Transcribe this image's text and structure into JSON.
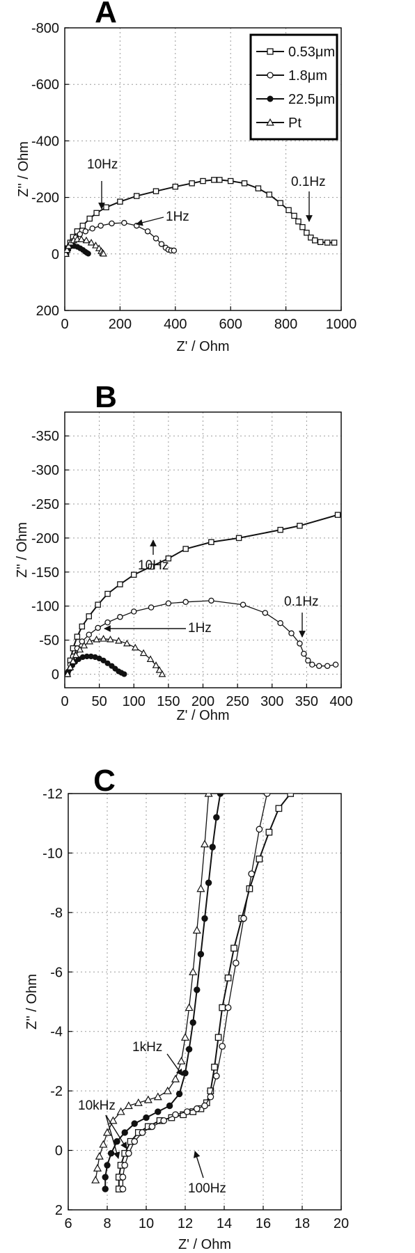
{
  "legend": [
    {
      "label": "0.53μm",
      "marker": "square"
    },
    {
      "label": "1.8μm",
      "marker": "open-circle"
    },
    {
      "label": "22.5μm",
      "marker": "filled-circle"
    },
    {
      "label": "Pt",
      "marker": "triangle"
    }
  ],
  "chart_data": [
    {
      "panel": "A",
      "type": "scatter",
      "xlabel": "Z' / Ohm",
      "ylabel": "Z'' / Ohm",
      "xlim": [
        0,
        1000
      ],
      "ylim": [
        200,
        -800
      ],
      "xticks": [
        "0",
        "200",
        "400",
        "600",
        "800",
        "1000"
      ],
      "yticks": [
        "-800",
        "-600",
        "-400",
        "-200",
        "0",
        "200"
      ],
      "grid": true,
      "legend_placement": "top-right",
      "series": [
        {
          "name": "0.53μm",
          "marker": "square",
          "x": [
            5,
            12,
            20,
            30,
            45,
            65,
            90,
            115,
            150,
            200,
            260,
            330,
            400,
            460,
            500,
            540,
            560,
            600,
            650,
            700,
            740,
            780,
            810,
            830,
            845,
            860,
            875,
            890,
            905,
            925,
            950,
            975
          ],
          "y": [
            0,
            -20,
            -40,
            -60,
            -80,
            -100,
            -125,
            -145,
            -165,
            -185,
            -205,
            -222,
            -238,
            -250,
            -258,
            -262,
            -262,
            -258,
            -250,
            -232,
            -210,
            -180,
            -155,
            -135,
            -115,
            -95,
            -75,
            -58,
            -48,
            -42,
            -40,
            -40
          ]
        },
        {
          "name": "1.8μm",
          "marker": "open-circle",
          "x": [
            5,
            10,
            18,
            28,
            40,
            55,
            75,
            100,
            130,
            170,
            215,
            260,
            300,
            330,
            350,
            365,
            375,
            385,
            395
          ],
          "y": [
            0,
            -15,
            -30,
            -45,
            -58,
            -70,
            -80,
            -90,
            -100,
            -108,
            -110,
            -100,
            -80,
            -55,
            -35,
            -22,
            -15,
            -12,
            -12
          ]
        },
        {
          "name": "22.5μm",
          "marker": "filled-circle",
          "x": [
            3,
            6,
            10,
            16,
            24,
            34,
            46,
            56,
            66,
            74,
            80,
            85
          ],
          "y": [
            0,
            -10,
            -18,
            -24,
            -28,
            -28,
            -25,
            -20,
            -14,
            -8,
            -4,
            -1
          ]
        },
        {
          "name": "Pt",
          "marker": "triangle",
          "x": [
            4,
            8,
            14,
            22,
            32,
            45,
            60,
            78,
            96,
            112,
            124,
            132,
            137,
            140
          ],
          "y": [
            0,
            -14,
            -28,
            -40,
            -48,
            -52,
            -52,
            -48,
            -40,
            -30,
            -20,
            -10,
            -4,
            -1
          ]
        }
      ],
      "annotations": [
        {
          "text": "10Hz",
          "x": 128,
          "y": -155
        },
        {
          "text": "1Hz",
          "x": 215,
          "y": -112
        },
        {
          "text": "0.1Hz",
          "x": 858,
          "y": -115
        }
      ]
    },
    {
      "panel": "B",
      "type": "scatter",
      "xlabel": "Z' / Ohm",
      "ylabel": "Z'' / Ohm",
      "xlim": [
        0,
        400
      ],
      "ylim": [
        20,
        -385
      ],
      "xticks": [
        "0",
        "50",
        "100",
        "150",
        "200",
        "250",
        "300",
        "350",
        "400"
      ],
      "yticks": [
        "-350",
        "-300",
        "-250",
        "-200",
        "-150",
        "-100",
        "-50",
        "0"
      ],
      "grid": true,
      "series": [
        {
          "name": "0.53μm",
          "marker": "square",
          "x": [
            4,
            8,
            12,
            18,
            25,
            35,
            48,
            62,
            80,
            100,
            125,
            150,
            175,
            212,
            252,
            312,
            340,
            395
          ],
          "y": [
            0,
            -20,
            -38,
            -55,
            -70,
            -85,
            -102,
            -118,
            -132,
            -146,
            -158,
            -170,
            -184,
            -194,
            -200,
            -212,
            -218,
            -234
          ]
        },
        {
          "name": "1.8μm",
          "marker": "open-circle",
          "x": [
            4,
            8,
            12,
            18,
            25,
            35,
            48,
            62,
            80,
            100,
            125,
            150,
            175,
            212,
            258,
            290,
            312,
            328,
            340,
            346,
            352,
            358,
            368,
            380,
            392
          ],
          "y": [
            0,
            -14,
            -26,
            -38,
            -48,
            -58,
            -68,
            -76,
            -84,
            -92,
            -98,
            -104,
            -106,
            -108,
            -102,
            -90,
            -75,
            -60,
            -45,
            -30,
            -20,
            -14,
            -12,
            -12,
            -14
          ]
        },
        {
          "name": "22.5μm",
          "marker": "filled-circle",
          "x": [
            3,
            5,
            8,
            11,
            15,
            20,
            26,
            32,
            38,
            44,
            50,
            56,
            62,
            68,
            73,
            78,
            82,
            86
          ],
          "y": [
            0,
            -4,
            -8,
            -13,
            -18,
            -22,
            -25,
            -26,
            -26,
            -25,
            -23,
            -20,
            -16,
            -12,
            -8,
            -4,
            -2,
            0
          ]
        },
        {
          "name": "Pt",
          "marker": "triangle",
          "x": [
            4,
            8,
            12,
            16,
            22,
            28,
            36,
            46,
            56,
            66,
            78,
            90,
            102,
            114,
            124,
            132,
            137,
            141
          ],
          "y": [
            0,
            -10,
            -19,
            -28,
            -36,
            -42,
            -48,
            -51,
            -52,
            -51,
            -49,
            -45,
            -39,
            -31,
            -22,
            -13,
            -6,
            0
          ]
        }
      ],
      "annotations": [
        {
          "text": "10Hz",
          "x": 125,
          "y": -155
        },
        {
          "text": "1Hz",
          "x": 68,
          "y": -52
        },
        {
          "text": "0.1Hz",
          "x": 347,
          "y": -25
        }
      ]
    },
    {
      "panel": "C",
      "type": "scatter",
      "xlabel": "Z' / Ohm",
      "ylabel": "Z'' / Ohm",
      "xlim": [
        6,
        20
      ],
      "ylim": [
        2,
        -12
      ],
      "xticks": [
        "6",
        "8",
        "10",
        "12",
        "14",
        "16",
        "18",
        "20"
      ],
      "yticks": [
        "-12",
        "-10",
        "-8",
        "-6",
        "-4",
        "-2",
        "0",
        "2"
      ],
      "grid": true,
      "series": [
        {
          "name": "0.53μm",
          "marker": "square",
          "x": [
            8.6,
            8.6,
            8.7,
            8.9,
            9.2,
            9.6,
            10.1,
            10.7,
            11.3,
            11.9,
            12.4,
            12.8,
            13.1,
            13.3,
            13.5,
            13.7,
            13.9,
            14.2,
            14.5,
            14.9,
            15.3,
            15.8,
            16.3,
            16.8,
            17.4
          ],
          "y": [
            1.3,
            0.9,
            0.5,
            0.1,
            -0.3,
            -0.6,
            -0.8,
            -1.0,
            -1.1,
            -1.2,
            -1.3,
            -1.4,
            -1.6,
            -2.0,
            -2.8,
            -3.8,
            -4.8,
            -5.8,
            -6.8,
            -7.8,
            -8.8,
            -9.8,
            -10.7,
            -11.5,
            -12.0
          ]
        },
        {
          "name": "1.8μm",
          "marker": "open-circle",
          "x": [
            8.8,
            8.8,
            8.9,
            9.1,
            9.4,
            9.8,
            10.3,
            10.9,
            11.5,
            12.1,
            12.6,
            13.0,
            13.3,
            13.6,
            13.9,
            14.2,
            14.6,
            15.0,
            15.4,
            15.8,
            16.2
          ],
          "y": [
            1.3,
            0.9,
            0.5,
            0.1,
            -0.3,
            -0.6,
            -0.8,
            -1.0,
            -1.2,
            -1.3,
            -1.4,
            -1.5,
            -1.8,
            -2.5,
            -3.5,
            -4.8,
            -6.3,
            -7.8,
            -9.3,
            -10.8,
            -12.0
          ]
        },
        {
          "name": "22.5μm",
          "marker": "filled-circle",
          "x": [
            7.9,
            7.9,
            8.0,
            8.2,
            8.5,
            8.9,
            9.4,
            10.0,
            10.6,
            11.2,
            11.7,
            12.0,
            12.2,
            12.4,
            12.6,
            12.8,
            13.0,
            13.2,
            13.4,
            13.6,
            13.8
          ],
          "y": [
            1.3,
            0.9,
            0.5,
            0.1,
            -0.3,
            -0.6,
            -0.9,
            -1.1,
            -1.3,
            -1.5,
            -1.9,
            -2.6,
            -3.4,
            -4.3,
            -5.4,
            -6.6,
            -7.8,
            -9.0,
            -10.2,
            -11.2,
            -12.0
          ]
        },
        {
          "name": "Pt",
          "marker": "triangle",
          "x": [
            7.4,
            7.5,
            7.6,
            7.8,
            8.0,
            8.3,
            8.7,
            9.1,
            9.6,
            10.1,
            10.6,
            11.1,
            11.5,
            11.8,
            12.0,
            12.2,
            12.4,
            12.6,
            12.8,
            13.0,
            13.2
          ],
          "y": [
            1.0,
            0.6,
            0.2,
            -0.2,
            -0.6,
            -1.0,
            -1.3,
            -1.5,
            -1.6,
            -1.7,
            -1.8,
            -2.0,
            -2.4,
            -3.0,
            -3.8,
            -4.8,
            -6.0,
            -7.4,
            -8.8,
            -10.3,
            -12.0
          ]
        }
      ],
      "annotations": [
        {
          "text": "1kHz",
          "x": 12.1,
          "y": -4.2
        },
        {
          "text": "10kHz",
          "x": 8.8,
          "y": -1.5
        },
        {
          "text": "100Hz",
          "x": 12.7,
          "y": -1.6
        }
      ]
    }
  ]
}
